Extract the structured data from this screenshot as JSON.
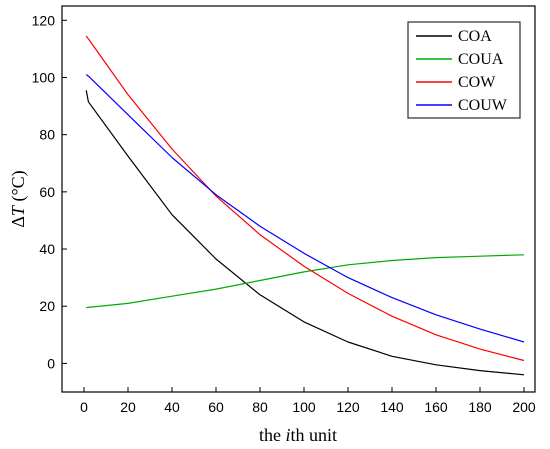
{
  "chart_data": {
    "type": "line",
    "title": "",
    "xlabel": {
      "prefix": "the ",
      "italic": "i",
      "suffix": "th unit"
    },
    "ylabel": {
      "delta": "Δ",
      "italic": "T",
      "unit": " (°C)"
    },
    "xlim": [
      -10,
      205
    ],
    "ylim": [
      -10,
      125
    ],
    "x_ticks": [
      0,
      20,
      40,
      60,
      80,
      100,
      120,
      140,
      160,
      180,
      200
    ],
    "y_ticks": [
      0,
      20,
      40,
      60,
      80,
      100,
      120
    ],
    "grid": false,
    "legend_position": "top-right",
    "x": [
      1,
      2,
      20,
      40,
      60,
      80,
      100,
      120,
      140,
      160,
      180,
      200
    ],
    "series": [
      {
        "name": "COA",
        "color": "#000000",
        "values": [
          95.5,
          91.5,
          72.5,
          52,
          36.5,
          24,
          14.5,
          7.5,
          2.5,
          -0.5,
          -2.5,
          -4
        ]
      },
      {
        "name": "COUA",
        "color": "#00aa00",
        "values": [
          19.5,
          19.6,
          21,
          23.5,
          26,
          29,
          32,
          34.5,
          36,
          37,
          37.5,
          38
        ]
      },
      {
        "name": "COW",
        "color": "#ff0000",
        "values": [
          114.5,
          113.5,
          94,
          75,
          58.5,
          45,
          34,
          24.5,
          16.5,
          10,
          5,
          1
        ]
      },
      {
        "name": "COUW",
        "color": "#0000ff",
        "values": [
          101,
          100.5,
          87,
          72,
          59,
          48,
          38.5,
          30,
          23,
          17,
          12,
          7.5
        ]
      }
    ]
  }
}
